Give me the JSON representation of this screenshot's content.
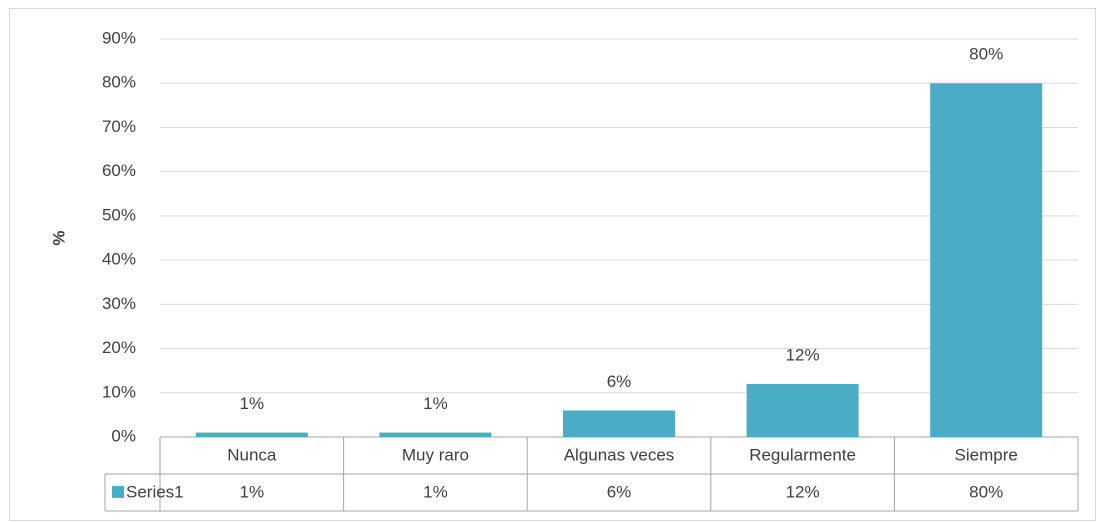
{
  "chart_data": {
    "type": "bar",
    "y_label": "%",
    "categories": [
      "Nunca",
      "Muy raro",
      "Algunas veces",
      "Regularmente",
      "Siempre"
    ],
    "series": [
      {
        "name": "Series1",
        "color": "#4bacc6",
        "values": [
          1,
          1,
          6,
          12,
          80
        ],
        "value_labels": [
          "1%",
          "1%",
          "6%",
          "12%",
          "80%"
        ]
      }
    ],
    "ylim": [
      0,
      90
    ],
    "yticks": [
      {
        "value": 0,
        "label": "0%"
      },
      {
        "value": 10,
        "label": "10%"
      },
      {
        "value": 20,
        "label": "20%"
      },
      {
        "value": 30,
        "label": "30%"
      },
      {
        "value": 40,
        "label": "40%"
      },
      {
        "value": 50,
        "label": "50%"
      },
      {
        "value": 60,
        "label": "60%"
      },
      {
        "value": 70,
        "label": "70%"
      },
      {
        "value": 80,
        "label": "80%"
      },
      {
        "value": 90,
        "label": "90%"
      }
    ],
    "grid": true,
    "data_table": true
  }
}
